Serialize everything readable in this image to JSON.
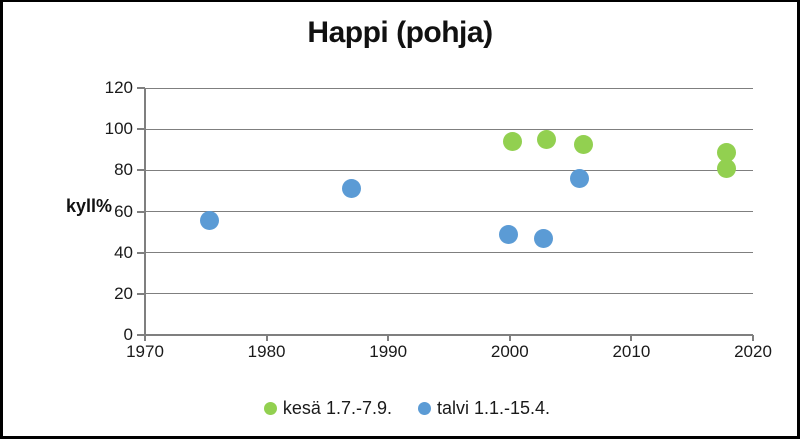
{
  "window": {
    "background": "#ffffff",
    "border_color": "#000000"
  },
  "chart_data": {
    "type": "scatter",
    "title": "Happi (pohja)",
    "ylabel": "kyll%",
    "xlabel": "",
    "xlim": [
      1970,
      2020
    ],
    "ylim": [
      0,
      120
    ],
    "xticks": [
      1970,
      1980,
      1990,
      2000,
      2010,
      2020
    ],
    "yticks": [
      0,
      20,
      40,
      60,
      80,
      100,
      120
    ],
    "grid": "horizontal",
    "gridline_color": "#7f7f7f",
    "axis_color": "#7f7f7f",
    "text_color": "#1a1a1a",
    "legend_position": "bottom",
    "series": [
      {
        "name": "kesä 1.7.-7.9.",
        "color": "#92d050",
        "points": [
          [
            2000.2,
            94
          ],
          [
            2003.0,
            95
          ],
          [
            2006.1,
            92.5
          ],
          [
            2017.8,
            88.5
          ],
          [
            2017.8,
            81
          ]
        ]
      },
      {
        "name": "talvi 1.1.-15.4.",
        "color": "#5b9bd5",
        "points": [
          [
            1975.3,
            55.5
          ],
          [
            1987.0,
            71
          ],
          [
            1999.9,
            49
          ],
          [
            2002.8,
            47
          ],
          [
            2005.7,
            76
          ]
        ]
      }
    ]
  }
}
